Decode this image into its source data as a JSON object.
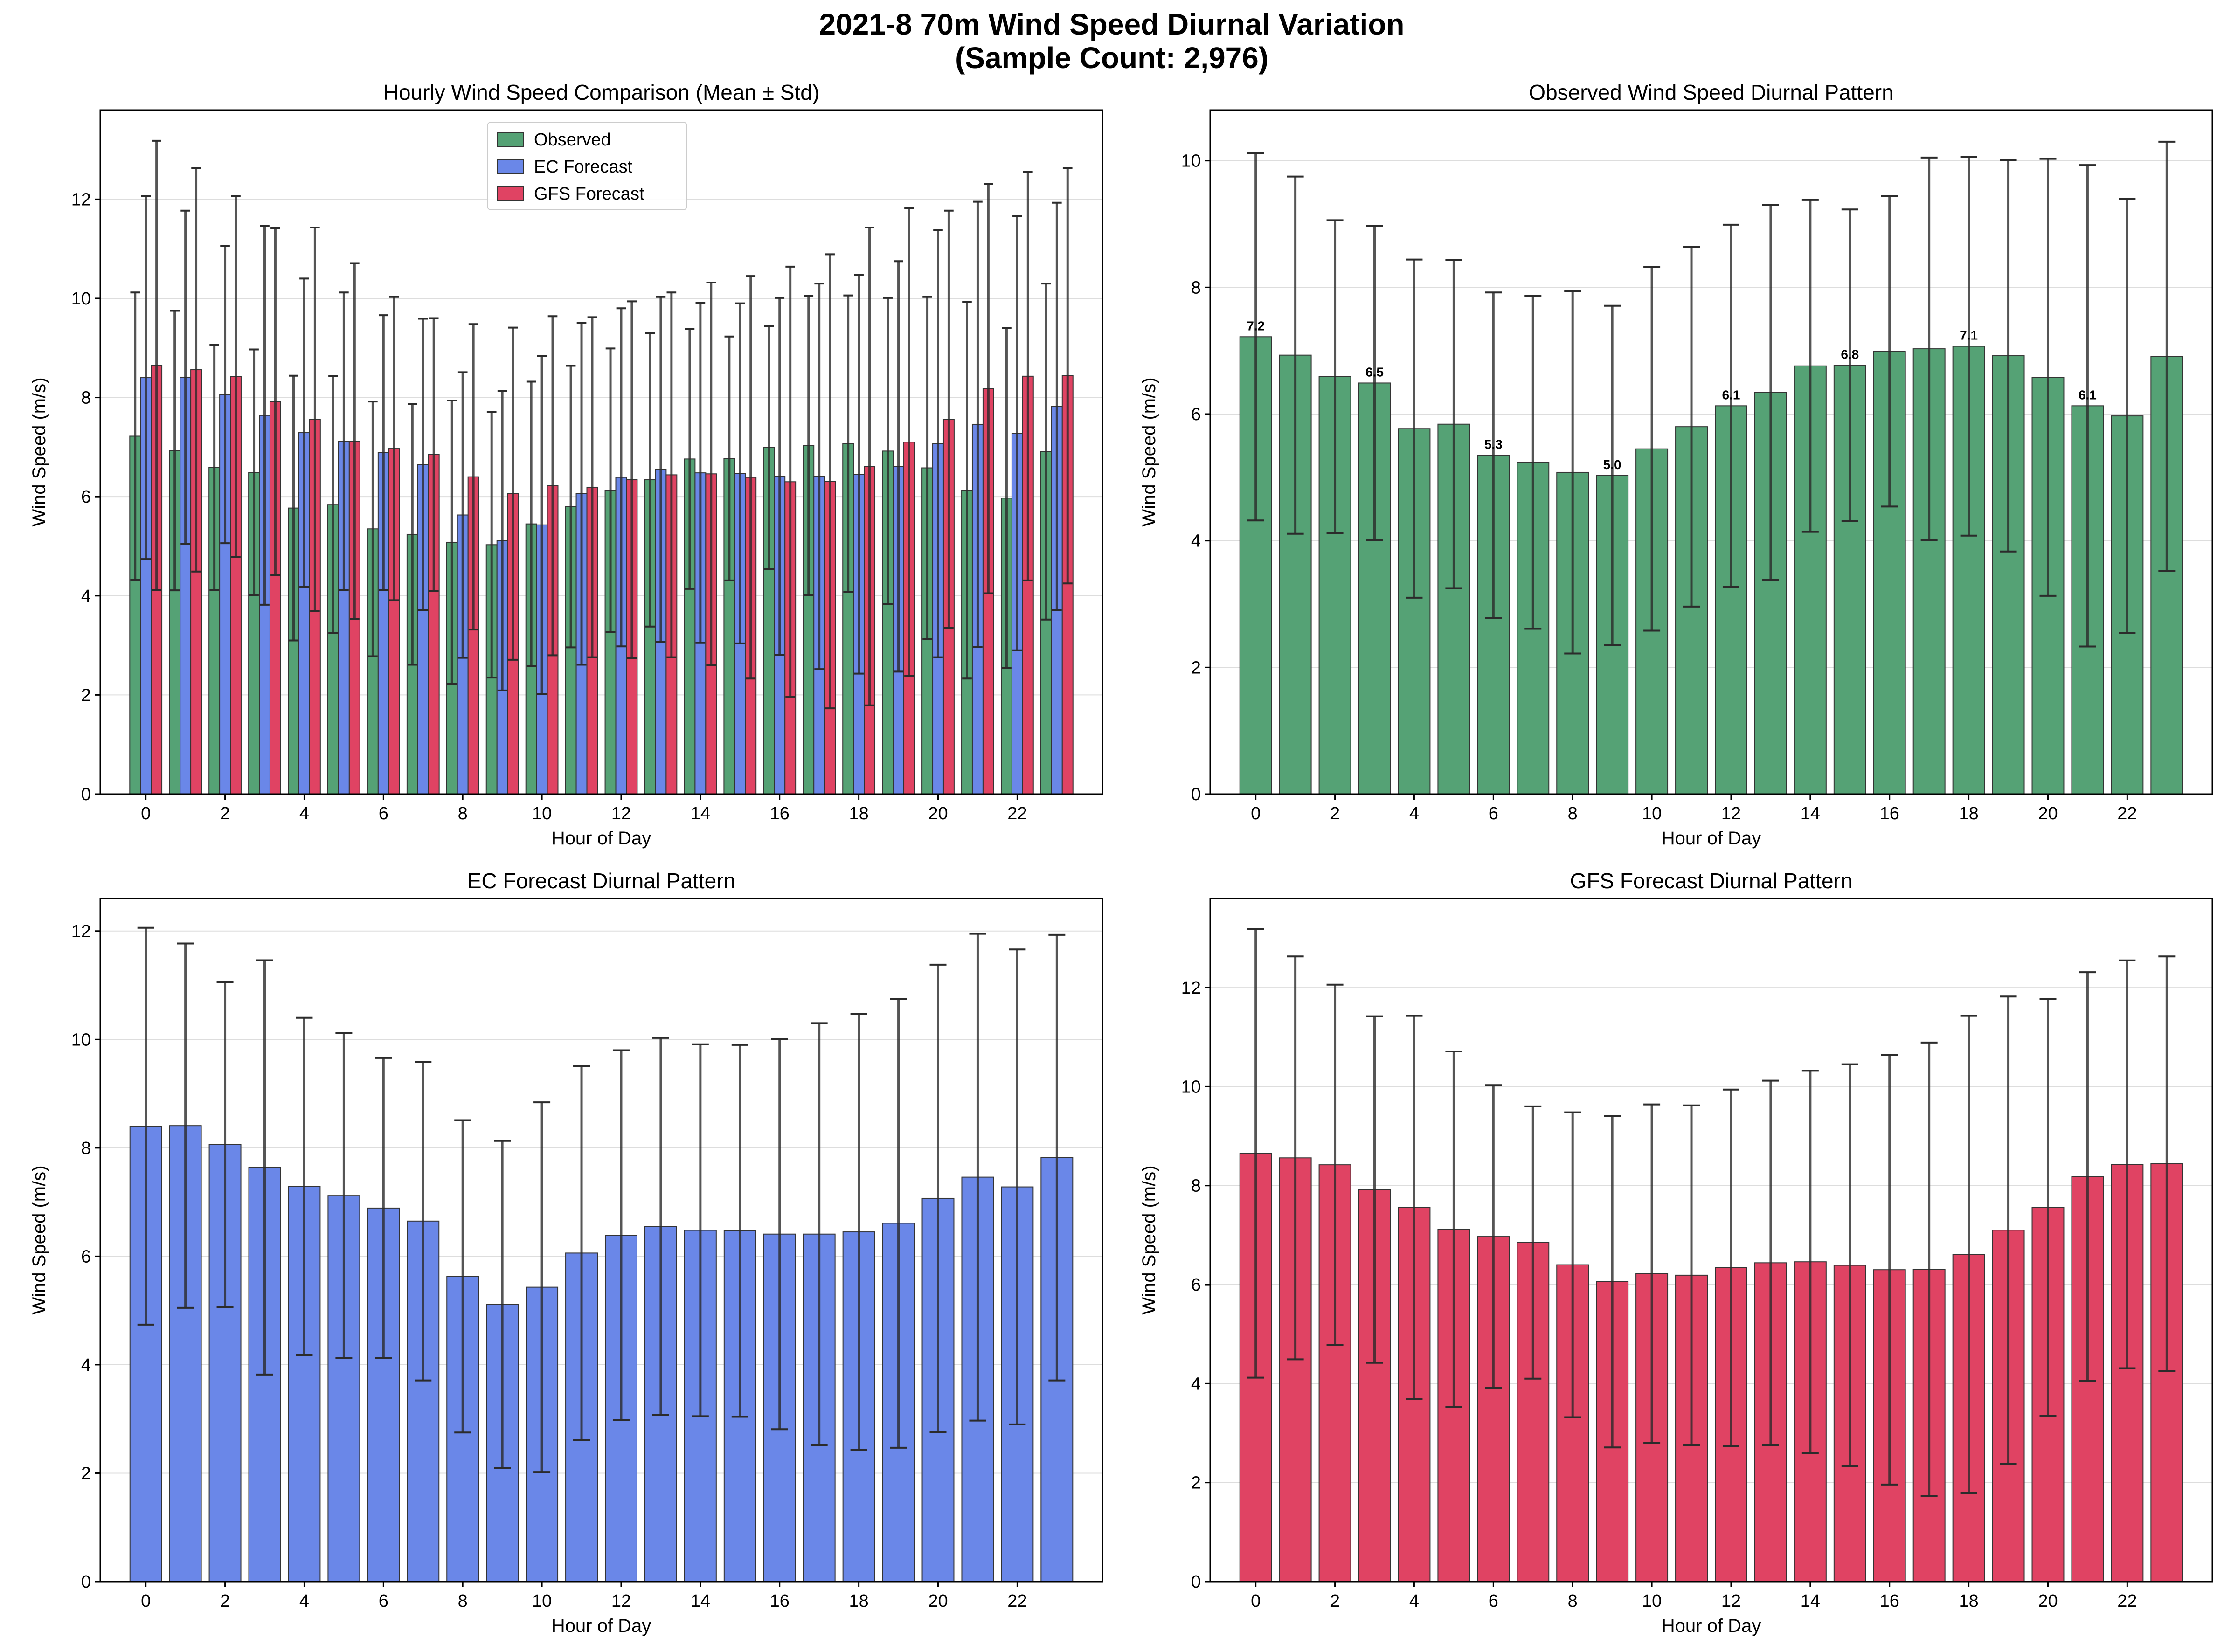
{
  "figure": {
    "title_line1": "2021-8 70m Wind Speed Diurnal Variation",
    "title_line2": "(Sample Count: 2,976)"
  },
  "colors": {
    "observed": "#55a275",
    "ec": "#6a87e8",
    "gfs": "#e04363",
    "errorbar": "#2b2b2b",
    "grid": "#dddddd"
  },
  "chart_data": [
    {
      "type": "bar",
      "title": "Hourly Wind Speed Comparison (Mean ± Std)",
      "xlabel": "Hour of Day",
      "ylabel": "Wind Speed (m/s)",
      "ylim": [
        0,
        13.8
      ],
      "yticks": [
        0,
        2,
        4,
        6,
        8,
        10,
        12
      ],
      "xticks": [
        0,
        2,
        4,
        6,
        8,
        10,
        12,
        14,
        16,
        18,
        20,
        22
      ],
      "grid": "y",
      "legend": "upper-center",
      "categories": [
        0,
        1,
        2,
        3,
        4,
        5,
        6,
        7,
        8,
        9,
        10,
        11,
        12,
        13,
        14,
        15,
        16,
        17,
        18,
        19,
        20,
        21,
        22,
        23
      ],
      "series": [
        {
          "name": "Observed",
          "color_key": "observed",
          "values": [
            7.22,
            6.93,
            6.59,
            6.49,
            5.77,
            5.84,
            5.35,
            5.24,
            5.08,
            5.03,
            5.45,
            5.8,
            6.13,
            6.34,
            6.76,
            6.77,
            6.99,
            7.03,
            7.07,
            6.92,
            6.58,
            6.13,
            5.97,
            6.91
          ],
          "std": [
            2.9,
            2.82,
            2.47,
            2.48,
            2.67,
            2.59,
            2.57,
            2.63,
            2.86,
            2.68,
            2.87,
            2.84,
            2.86,
            2.96,
            2.62,
            2.46,
            2.45,
            3.02,
            2.99,
            3.09,
            3.45,
            3.8,
            3.43,
            3.39
          ]
        },
        {
          "name": "EC Forecast",
          "color_key": "ec",
          "values": [
            8.4,
            8.41,
            8.06,
            7.64,
            7.29,
            7.12,
            6.89,
            6.65,
            5.63,
            5.11,
            5.43,
            6.06,
            6.39,
            6.55,
            6.48,
            6.47,
            6.41,
            6.41,
            6.45,
            6.61,
            7.07,
            7.46,
            7.28,
            7.82
          ],
          "std": [
            3.66,
            3.36,
            3.0,
            3.82,
            3.11,
            3.0,
            2.77,
            2.94,
            2.88,
            3.02,
            3.41,
            3.45,
            3.41,
            3.48,
            3.43,
            3.43,
            3.6,
            3.89,
            4.02,
            4.14,
            4.31,
            4.49,
            4.38,
            4.11
          ]
        },
        {
          "name": "GFS Forecast",
          "color_key": "gfs",
          "values": [
            8.65,
            8.56,
            8.42,
            7.92,
            7.56,
            7.12,
            6.97,
            6.85,
            6.4,
            6.06,
            6.22,
            6.19,
            6.34,
            6.44,
            6.46,
            6.39,
            6.3,
            6.31,
            6.61,
            7.1,
            7.56,
            8.18,
            8.43,
            8.44
          ],
          "std": [
            4.53,
            4.07,
            3.64,
            3.5,
            3.87,
            3.59,
            3.06,
            2.75,
            3.08,
            3.35,
            3.42,
            3.43,
            3.6,
            3.68,
            3.86,
            4.06,
            4.34,
            4.58,
            4.82,
            4.72,
            4.21,
            4.13,
            4.12,
            4.19
          ]
        }
      ]
    },
    {
      "type": "bar",
      "title": "Observed Wind Speed Diurnal Pattern",
      "xlabel": "Hour of Day",
      "ylabel": "Wind Speed (m/s)",
      "ylim": [
        0,
        10.8
      ],
      "yticks": [
        0,
        2,
        4,
        6,
        8,
        10
      ],
      "xticks": [
        0,
        2,
        4,
        6,
        8,
        10,
        12,
        14,
        16,
        18,
        20,
        22
      ],
      "grid": "y",
      "color_key": "observed",
      "categories": [
        0,
        1,
        2,
        3,
        4,
        5,
        6,
        7,
        8,
        9,
        10,
        11,
        12,
        13,
        14,
        15,
        16,
        17,
        18,
        19,
        20,
        21,
        22,
        23
      ],
      "values": [
        7.22,
        6.93,
        6.59,
        6.49,
        5.77,
        5.84,
        5.35,
        5.24,
        5.08,
        5.03,
        5.45,
        5.8,
        6.13,
        6.34,
        6.76,
        6.77,
        6.99,
        7.03,
        7.07,
        6.92,
        6.58,
        6.13,
        5.97,
        6.91
      ],
      "std": [
        2.9,
        2.82,
        2.47,
        2.48,
        2.67,
        2.59,
        2.57,
        2.63,
        2.86,
        2.68,
        2.87,
        2.84,
        2.86,
        2.96,
        2.62,
        2.46,
        2.45,
        3.02,
        2.99,
        3.09,
        3.45,
        3.8,
        3.43,
        3.39
      ],
      "annotations": [
        {
          "hour": 0,
          "text": "7.2"
        },
        {
          "hour": 3,
          "text": "6.5"
        },
        {
          "hour": 6,
          "text": "5.3"
        },
        {
          "hour": 9,
          "text": "5.0"
        },
        {
          "hour": 12,
          "text": "6.1"
        },
        {
          "hour": 15,
          "text": "6.8"
        },
        {
          "hour": 18,
          "text": "7.1"
        },
        {
          "hour": 21,
          "text": "6.1"
        }
      ]
    },
    {
      "type": "bar",
      "title": "EC Forecast Diurnal Pattern",
      "xlabel": "Hour of Day",
      "ylabel": "Wind Speed (m/s)",
      "ylim": [
        0,
        12.6
      ],
      "yticks": [
        0,
        2,
        4,
        6,
        8,
        10,
        12
      ],
      "xticks": [
        0,
        2,
        4,
        6,
        8,
        10,
        12,
        14,
        16,
        18,
        20,
        22
      ],
      "grid": "y",
      "color_key": "ec",
      "categories": [
        0,
        1,
        2,
        3,
        4,
        5,
        6,
        7,
        8,
        9,
        10,
        11,
        12,
        13,
        14,
        15,
        16,
        17,
        18,
        19,
        20,
        21,
        22,
        23
      ],
      "values": [
        8.4,
        8.41,
        8.06,
        7.64,
        7.29,
        7.12,
        6.89,
        6.65,
        5.63,
        5.11,
        5.43,
        6.06,
        6.39,
        6.55,
        6.48,
        6.47,
        6.41,
        6.41,
        6.45,
        6.61,
        7.07,
        7.46,
        7.28,
        7.82
      ],
      "std": [
        3.66,
        3.36,
        3.0,
        3.82,
        3.11,
        3.0,
        2.77,
        2.94,
        2.88,
        3.02,
        3.41,
        3.45,
        3.41,
        3.48,
        3.43,
        3.43,
        3.6,
        3.89,
        4.02,
        4.14,
        4.31,
        4.49,
        4.38,
        4.11
      ]
    },
    {
      "type": "bar",
      "title": "GFS Forecast Diurnal Pattern",
      "xlabel": "Hour of Day",
      "ylabel": "Wind Speed (m/s)",
      "ylim": [
        0,
        13.8
      ],
      "yticks": [
        0,
        2,
        4,
        6,
        8,
        10,
        12
      ],
      "xticks": [
        0,
        2,
        4,
        6,
        8,
        10,
        12,
        14,
        16,
        18,
        20,
        22
      ],
      "grid": "y",
      "color_key": "gfs",
      "categories": [
        0,
        1,
        2,
        3,
        4,
        5,
        6,
        7,
        8,
        9,
        10,
        11,
        12,
        13,
        14,
        15,
        16,
        17,
        18,
        19,
        20,
        21,
        22,
        23
      ],
      "values": [
        8.65,
        8.56,
        8.42,
        7.92,
        7.56,
        7.12,
        6.97,
        6.85,
        6.4,
        6.06,
        6.22,
        6.19,
        6.34,
        6.44,
        6.46,
        6.39,
        6.3,
        6.31,
        6.61,
        7.1,
        7.56,
        8.18,
        8.43,
        8.44
      ],
      "std": [
        4.53,
        4.07,
        3.64,
        3.5,
        3.87,
        3.59,
        3.06,
        2.75,
        3.08,
        3.35,
        3.42,
        3.43,
        3.6,
        3.68,
        3.86,
        4.06,
        4.34,
        4.58,
        4.82,
        4.72,
        4.21,
        4.13,
        4.12,
        4.19
      ]
    }
  ]
}
